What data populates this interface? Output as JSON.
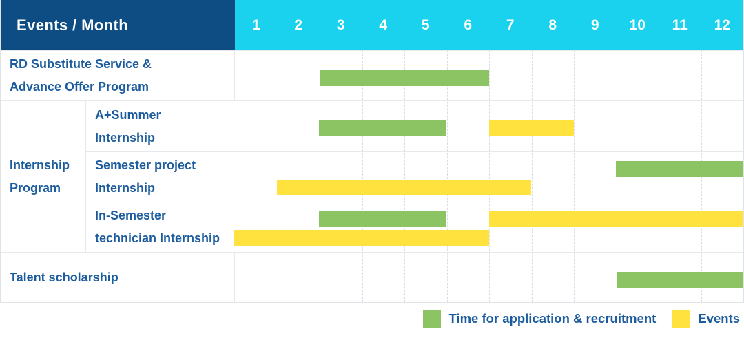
{
  "header": {
    "title": "Events / Month",
    "months": [
      "1",
      "2",
      "3",
      "4",
      "5",
      "6",
      "7",
      "8",
      "9",
      "10",
      "11",
      "12"
    ]
  },
  "colors": {
    "header_bg": "#0e4c84",
    "months_bg": "#1bd2ee",
    "label_text": "#1c5c9e",
    "application_green": "#8cc464",
    "event_yellow": "#ffe23e",
    "grid_line": "#d8dbe0",
    "row_border": "#e6e8ec"
  },
  "series": {
    "application": {
      "label": "Time for application & recruitment",
      "color": "#8cc464"
    },
    "event": {
      "label": "Events",
      "color": "#ffe23e"
    }
  },
  "groups": {
    "internship": {
      "label": "Internship Program",
      "lines": [
        "Internship",
        "Program"
      ]
    }
  },
  "chart_data": {
    "type": "bar",
    "subtype": "gantt",
    "title": "Events / Month",
    "x_axis": {
      "label": "Month",
      "ticks": [
        "1",
        "2",
        "3",
        "4",
        "5",
        "6",
        "7",
        "8",
        "9",
        "10",
        "11",
        "12"
      ],
      "range": [
        1,
        12
      ]
    },
    "legend_position": "bottom-right",
    "grid": "dashed-vertical",
    "rows": [
      {
        "group": null,
        "label": "RD Substitute Service & Advance Offer Program",
        "label_lines": [
          "RD Substitute Service &",
          "Advance Offer Program"
        ],
        "bars": [
          {
            "series": "application",
            "start_month": 3,
            "end_month": 6,
            "lane": "mid"
          }
        ]
      },
      {
        "group": "internship",
        "label": "A+Summer Internship",
        "label_lines": [
          "A+Summer",
          "Internship"
        ],
        "bars": [
          {
            "series": "application",
            "start_month": 3,
            "end_month": 5,
            "lane": "mid"
          },
          {
            "series": "event",
            "start_month": 7,
            "end_month": 8,
            "lane": "mid"
          }
        ]
      },
      {
        "group": "internship",
        "label": "Semester project Internship",
        "label_lines": [
          "Semester project",
          "Internship"
        ],
        "bars": [
          {
            "series": "application",
            "start_month": 10,
            "end_month": 12,
            "lane": "top"
          },
          {
            "series": "event",
            "start_month": 2,
            "end_month": 7,
            "lane": "bottom"
          }
        ]
      },
      {
        "group": "internship",
        "label": "In-Semester technician Internship",
        "label_lines": [
          "In-Semester",
          "technician Internship"
        ],
        "bars": [
          {
            "series": "application",
            "start_month": 3,
            "end_month": 5,
            "lane": "top"
          },
          {
            "series": "event",
            "start_month": 7,
            "end_month": 12,
            "lane": "top"
          },
          {
            "series": "event",
            "start_month": 1,
            "end_month": 6,
            "lane": "bottom"
          }
        ]
      },
      {
        "group": null,
        "label": "Talent scholarship",
        "label_lines": [
          "Talent scholarship"
        ],
        "bars": [
          {
            "series": "application",
            "start_month": 10,
            "end_month": 12,
            "lane": "mid"
          }
        ]
      }
    ]
  },
  "legend": {
    "items": [
      {
        "series": "application",
        "label": "Time for application & recruitment"
      },
      {
        "series": "event",
        "label": "Events"
      }
    ]
  }
}
